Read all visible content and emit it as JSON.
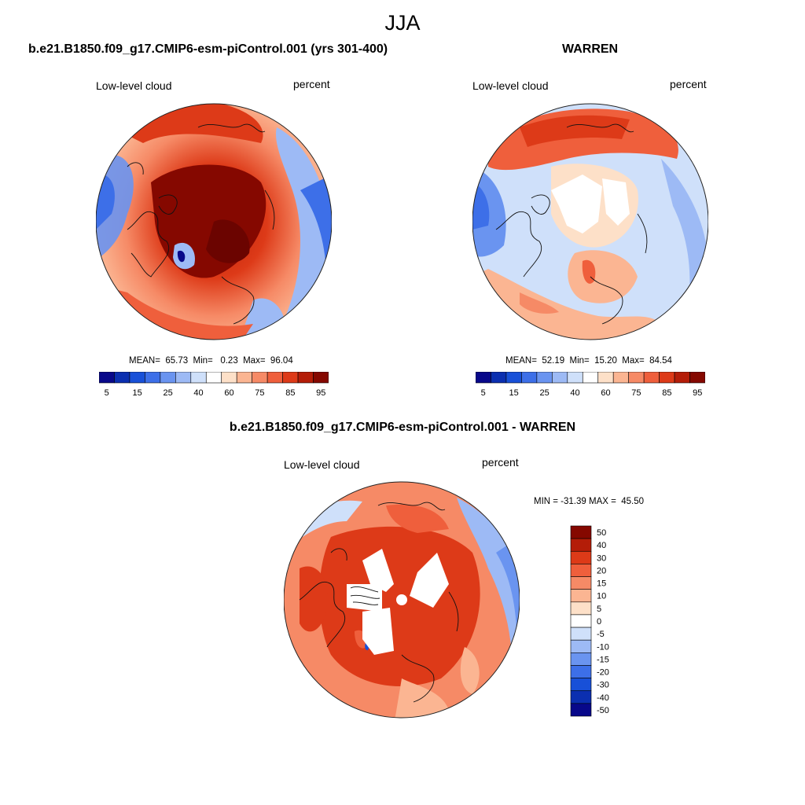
{
  "main_title": "JJA",
  "panels": [
    {
      "title": "b.e21.B1850.f09_g17.CMIP6-esm-piControl.001 (yrs 301-400)",
      "variable": "Low-level cloud",
      "units": "percent",
      "stats": "MEAN=  65.73  Min=   0.23  Max=  96.04"
    },
    {
      "title": "WARREN",
      "variable": "Low-level cloud",
      "units": "percent",
      "stats": "MEAN=  52.19  Min=  15.20  Max=  84.54"
    },
    {
      "title": "b.e21.B1850.f09_g17.CMIP6-esm-piControl.001 - WARREN",
      "variable": "Low-level cloud",
      "units": "percent",
      "stats": "MIN = -31.39 MAX =  45.50"
    }
  ],
  "colorbar_abs": {
    "labels": [
      "5",
      "15",
      "25",
      "40",
      "60",
      "75",
      "85",
      "95"
    ],
    "colors": [
      "#08088a",
      "#0b2fb0",
      "#1850d8",
      "#3d6fe8",
      "#6a94f0",
      "#9dbaf5",
      "#cfe0fa",
      "#ffffff",
      "#fde0c8",
      "#fbb592",
      "#f68a66",
      "#ef5f3c",
      "#dd3a18",
      "#b41d08",
      "#850800"
    ]
  },
  "colorbar_diff": {
    "labels": [
      "50",
      "40",
      "30",
      "20",
      "15",
      "10",
      "5",
      "0",
      "-5",
      "-10",
      "-15",
      "-20",
      "-30",
      "-40",
      "-50"
    ],
    "colors": [
      "#850800",
      "#b41d08",
      "#dd3a18",
      "#ef5f3c",
      "#f68a66",
      "#fbb592",
      "#fde0c8",
      "#ffffff",
      "#cfe0fa",
      "#9dbaf5",
      "#6a94f0",
      "#3d6fe8",
      "#1850d8",
      "#0b2fb0",
      "#08088a"
    ]
  }
}
